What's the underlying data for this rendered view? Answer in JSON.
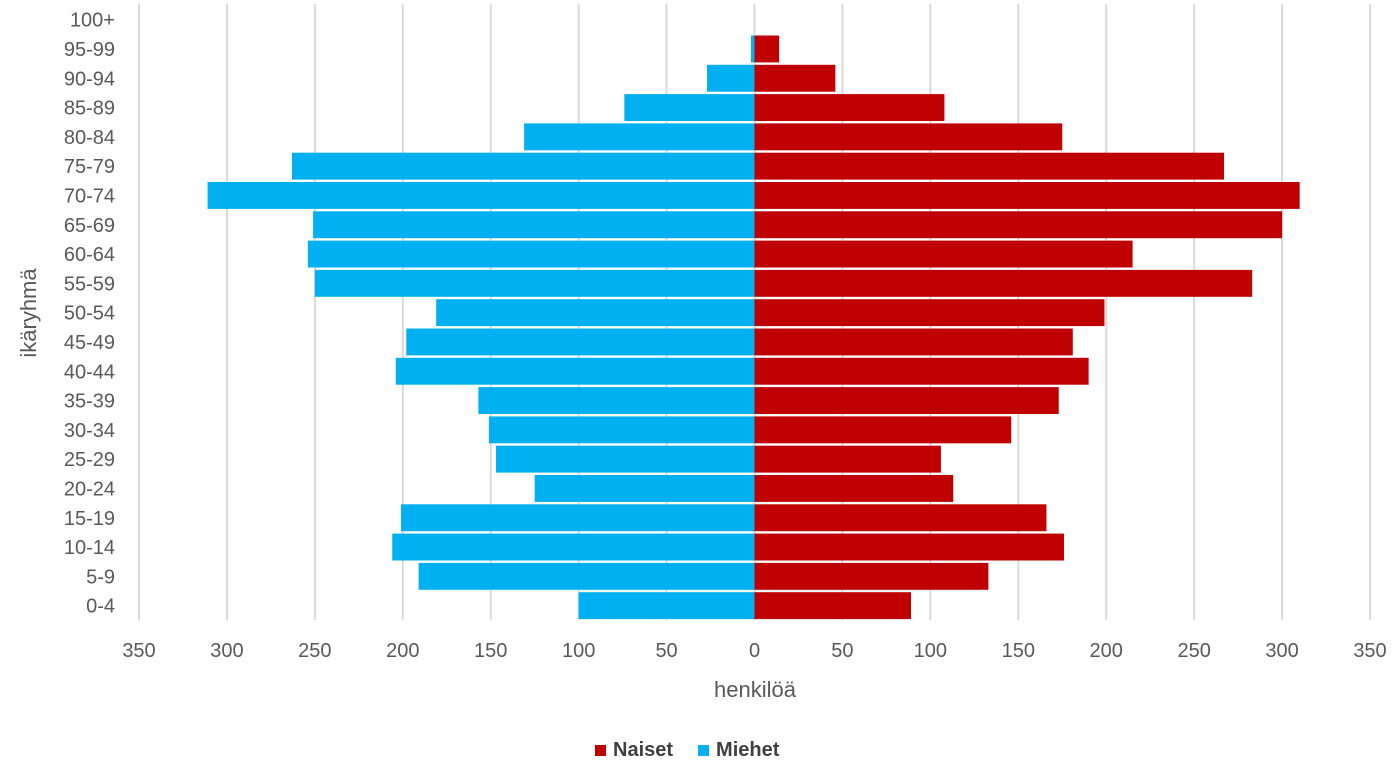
{
  "chart_data": {
    "type": "bar",
    "orientation": "horizontal",
    "layout": "population-pyramid",
    "categories": [
      "100+",
      "95-99",
      "90-94",
      "85-89",
      "80-84",
      "75-79",
      "70-74",
      "65-69",
      "60-64",
      "55-59",
      "50-54",
      "45-49",
      "40-44",
      "35-39",
      "30-34",
      "25-29",
      "20-24",
      "15-19",
      "10-14",
      "5-9",
      "0-4"
    ],
    "series": [
      {
        "name": "Naiset",
        "color": "#C00000",
        "side": "right",
        "values": [
          0,
          14,
          46,
          108,
          175,
          267,
          310,
          300,
          215,
          283,
          199,
          181,
          190,
          173,
          146,
          106,
          113,
          166,
          176,
          133,
          89
        ]
      },
      {
        "name": "Miehet",
        "color": "#00B0F0",
        "side": "left",
        "values": [
          0,
          2,
          27,
          74,
          131,
          263,
          311,
          251,
          254,
          250,
          181,
          198,
          204,
          157,
          151,
          147,
          125,
          201,
          206,
          191,
          100
        ]
      }
    ],
    "xlabel": "henkilöä",
    "ylabel": "ikäryhmä",
    "xlim": [
      -350,
      350
    ],
    "xticks": [
      -350,
      -300,
      -250,
      -200,
      -150,
      -100,
      -50,
      0,
      50,
      100,
      150,
      200,
      250,
      300,
      350
    ],
    "xtick_labels": [
      "350",
      "300",
      "250",
      "200",
      "150",
      "100",
      "50",
      "0",
      "50",
      "100",
      "150",
      "200",
      "250",
      "300",
      "350"
    ],
    "grid": "vertical",
    "legend": "bottom",
    "legend_order": [
      "Naiset",
      "Miehet"
    ]
  }
}
